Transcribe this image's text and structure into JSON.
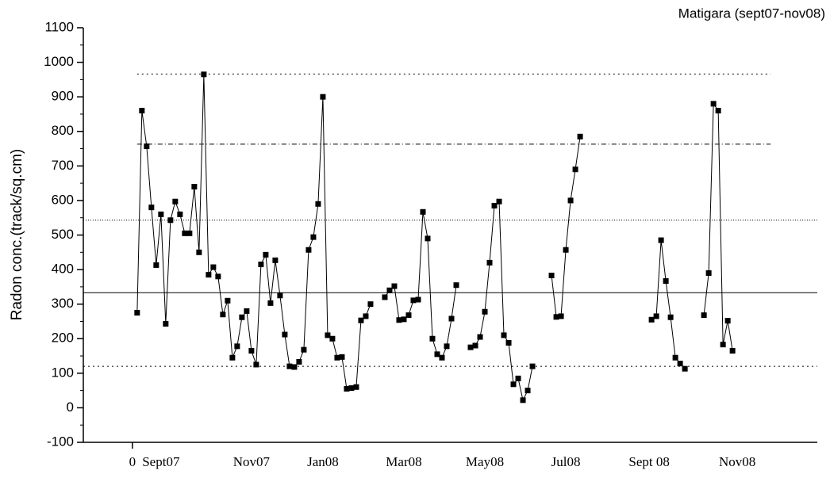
{
  "chart_data": {
    "type": "line",
    "title": "Matigara (sept07-nov08)",
    "y_label": "Radon conc.(track/sq.cm)",
    "x": [
      1,
      2,
      3,
      4,
      5,
      6,
      7,
      8,
      9,
      10,
      11,
      12,
      13,
      14,
      15,
      16,
      17,
      18,
      19,
      20,
      21,
      22,
      23,
      24,
      25,
      26,
      27,
      28,
      29,
      30,
      31,
      32,
      33,
      34,
      35,
      36,
      37,
      38,
      39,
      40,
      41,
      42,
      43,
      44,
      45,
      46,
      47,
      48,
      49,
      50,
      51,
      53,
      54,
      55,
      56,
      57,
      58,
      59,
      60,
      61,
      62,
      63,
      64,
      65,
      66,
      67,
      68,
      69,
      71,
      72,
      73,
      74,
      75,
      76,
      77,
      78,
      79,
      80,
      81,
      82,
      83,
      84,
      86,
      88,
      89,
      90,
      91,
      92,
      93,
      94,
      100,
      109,
      110,
      111,
      112,
      113,
      114,
      115,
      116,
      118,
      120,
      121,
      122,
      123,
      124,
      125,
      126
    ],
    "series": [
      {
        "name": "Radon",
        "color": "#000000",
        "values": [
          275,
          860,
          757,
          580,
          413,
          560,
          243,
          543,
          597,
          560,
          505,
          505,
          640,
          450,
          965,
          385,
          407,
          380,
          270,
          310,
          145,
          178,
          262,
          280,
          165,
          125,
          415,
          443,
          303,
          427,
          325,
          212,
          120,
          118,
          133,
          168,
          457,
          494,
          590,
          900,
          210,
          200,
          145,
          147,
          55,
          57,
          60,
          253,
          265,
          300,
          null,
          320,
          340,
          352,
          254,
          256,
          268,
          311,
          313,
          567,
          490,
          200,
          155,
          145,
          178,
          258,
          355,
          null,
          175,
          180,
          205,
          278,
          420,
          585,
          597,
          210,
          188,
          68,
          85,
          22,
          50,
          120,
          null,
          383,
          263,
          265,
          457,
          600,
          690,
          785,
          null,
          255,
          265,
          485,
          367,
          262,
          145,
          128,
          113,
          null,
          268,
          390,
          880,
          860,
          183,
          252,
          165
        ]
      }
    ],
    "xlim": [
      -10.3,
      143.8
    ],
    "xticks": [
      0,
      {
        "value": 6,
        "label": "Sept07"
      },
      {
        "value": 25,
        "label": "Nov07"
      },
      {
        "value": 40,
        "label": "Jan08"
      },
      {
        "value": 57,
        "label": "Mar08"
      },
      {
        "value": 74,
        "label": "May08"
      },
      {
        "value": 91,
        "label": "Jul08"
      },
      {
        "value": 108.5,
        "label": "Sept 08"
      },
      {
        "value": 127,
        "label": "Nov08"
      }
    ],
    "ylim": [
      -100,
      1100
    ],
    "yticks": [
      -100,
      0,
      100,
      200,
      300,
      400,
      500,
      600,
      700,
      800,
      900,
      1000,
      1100
    ],
    "reference_lines": [
      {
        "value": 966,
        "style": "dotted",
        "x_extent": [
          1,
          134
        ]
      },
      {
        "value": 763,
        "style": "dashdot",
        "x_extent": [
          1,
          134
        ]
      },
      {
        "value": 543,
        "style": "finedotted"
      },
      {
        "value": 333,
        "style": "solid"
      },
      {
        "value": 120,
        "style": "dotted"
      }
    ]
  }
}
